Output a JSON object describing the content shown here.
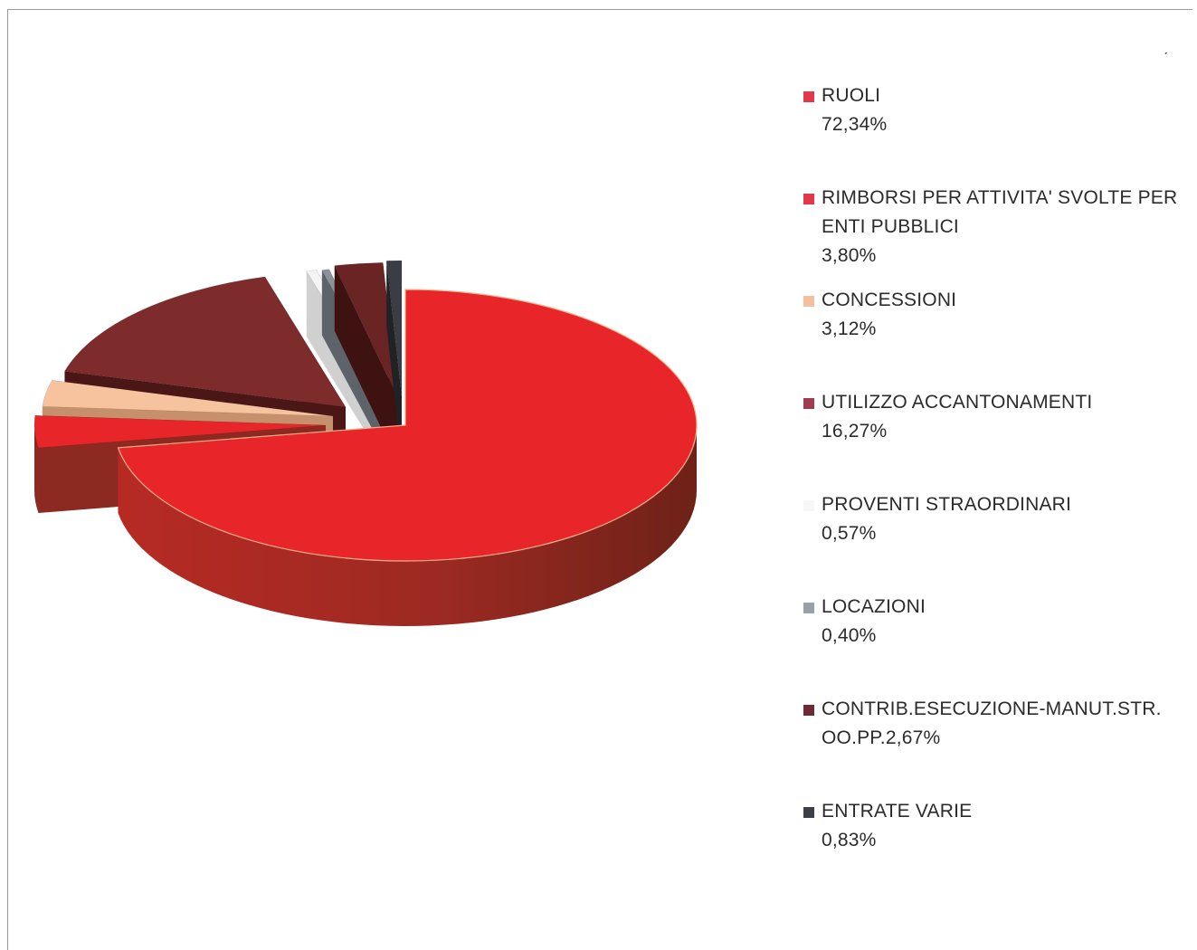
{
  "chart_data": {
    "type": "pie",
    "title": "",
    "legend_position": "right",
    "slices": [
      {
        "label": "RUOLI",
        "value_label": "72,34%",
        "value": 72.34,
        "color": "#e8262a",
        "side": "#8c2a22",
        "swatch": "#e2384a"
      },
      {
        "label": "RIMBORSI PER ATTIVITA' SVOLTE PER ENTI PUBBLICI",
        "value_label": "3,80%",
        "value": 3.8,
        "color": "#e8262a",
        "side": "#8c2a22",
        "swatch": "#e2384a"
      },
      {
        "label": "CONCESSIONI",
        "value_label": "3,12%",
        "value": 3.12,
        "color": "#f6c39e",
        "side": "#c7906c",
        "swatch": "#f2c09e"
      },
      {
        "label": "UTILIZZO ACCANTONAMENTI",
        "value_label": "16,27%",
        "value": 16.27,
        "color": "#7d2b2b",
        "side": "#4a1616",
        "swatch": "#a03c50"
      },
      {
        "label": "PROVENTI STRAORDINARI",
        "value_label": "0,57%",
        "value": 0.57,
        "color": "#f4f4f4",
        "side": "#d0d0d0",
        "swatch": "#f4f4f4"
      },
      {
        "label": "LOCAZIONI",
        "value_label": "0,40%",
        "value": 0.4,
        "color": "#8c9199",
        "side": "#5e636a",
        "swatch": "#9aa0a8"
      },
      {
        "label": "CONTRIB.ESECUZIONE-MANUT.STR. OO.PP.",
        "value_label": "2,67%",
        "value": 2.67,
        "color": "#6a2424",
        "side": "#3f1212",
        "swatch": "#6e2a34"
      },
      {
        "label": "ENTRATE VARIE",
        "value_label": "0,83%",
        "value": 0.83,
        "color": "#3a3d44",
        "side": "#202226",
        "swatch": "#3c3f46"
      }
    ]
  },
  "legend": {
    "items": [
      {
        "line1": "RUOLI",
        "value": "72,34%"
      },
      {
        "line1": "RIMBORSI PER ATTIVITA' SVOLTE PER",
        "line2": "ENTI PUBBLICI",
        "value": "3,80%"
      },
      {
        "line1": "CONCESSIONI",
        "value": "3,12%"
      },
      {
        "line1": "UTILIZZO ACCANTONAMENTI",
        "value": "16,27%"
      },
      {
        "line1": "PROVENTI STRAORDINARI",
        "value": "0,57%"
      },
      {
        "line1": "LOCAZIONI",
        "value": "0,40%"
      },
      {
        "line1": "CONTRIB.ESECUZIONE-MANUT.STR.",
        "line2": "OO.PP.2,67%"
      },
      {
        "line1": "ENTRATE VARIE",
        "value": "0,83%"
      }
    ]
  }
}
